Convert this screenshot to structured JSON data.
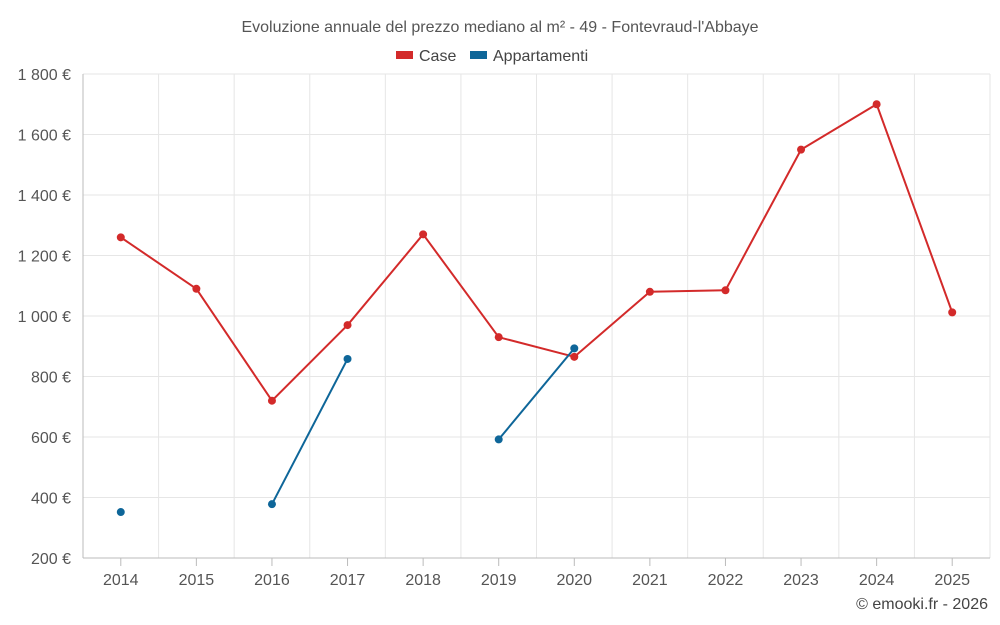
{
  "chart_data": {
    "type": "line",
    "title": "Evoluzione annuale del prezzo mediano al m² - 49 - Fontevraud-l'Abbaye",
    "categories": [
      "2014",
      "2015",
      "2016",
      "2017",
      "2018",
      "2019",
      "2020",
      "2021",
      "2022",
      "2023",
      "2024",
      "2025"
    ],
    "ylim": [
      200,
      1800
    ],
    "yticks": [
      200,
      400,
      600,
      800,
      1000,
      1200,
      1400,
      1600,
      1800
    ],
    "ytick_labels": [
      "200 €",
      "400 €",
      "600 €",
      "800 €",
      "1 000 €",
      "1 200 €",
      "1 400 €",
      "1 600 €",
      "1 800 €"
    ],
    "legend_position": "top-center",
    "grid": true,
    "series": [
      {
        "name": "Case",
        "color": "#d32a2a",
        "values": [
          1260,
          1090,
          720,
          970,
          1270,
          930,
          865,
          1080,
          1085,
          1550,
          1700,
          1012
        ]
      },
      {
        "name": "Appartamenti",
        "color": "#0e6699",
        "values": [
          352,
          null,
          378,
          858,
          null,
          592,
          893,
          null,
          null,
          null,
          null,
          null
        ]
      }
    ]
  },
  "footer": {
    "credit": "© emooki.fr - 2026"
  }
}
